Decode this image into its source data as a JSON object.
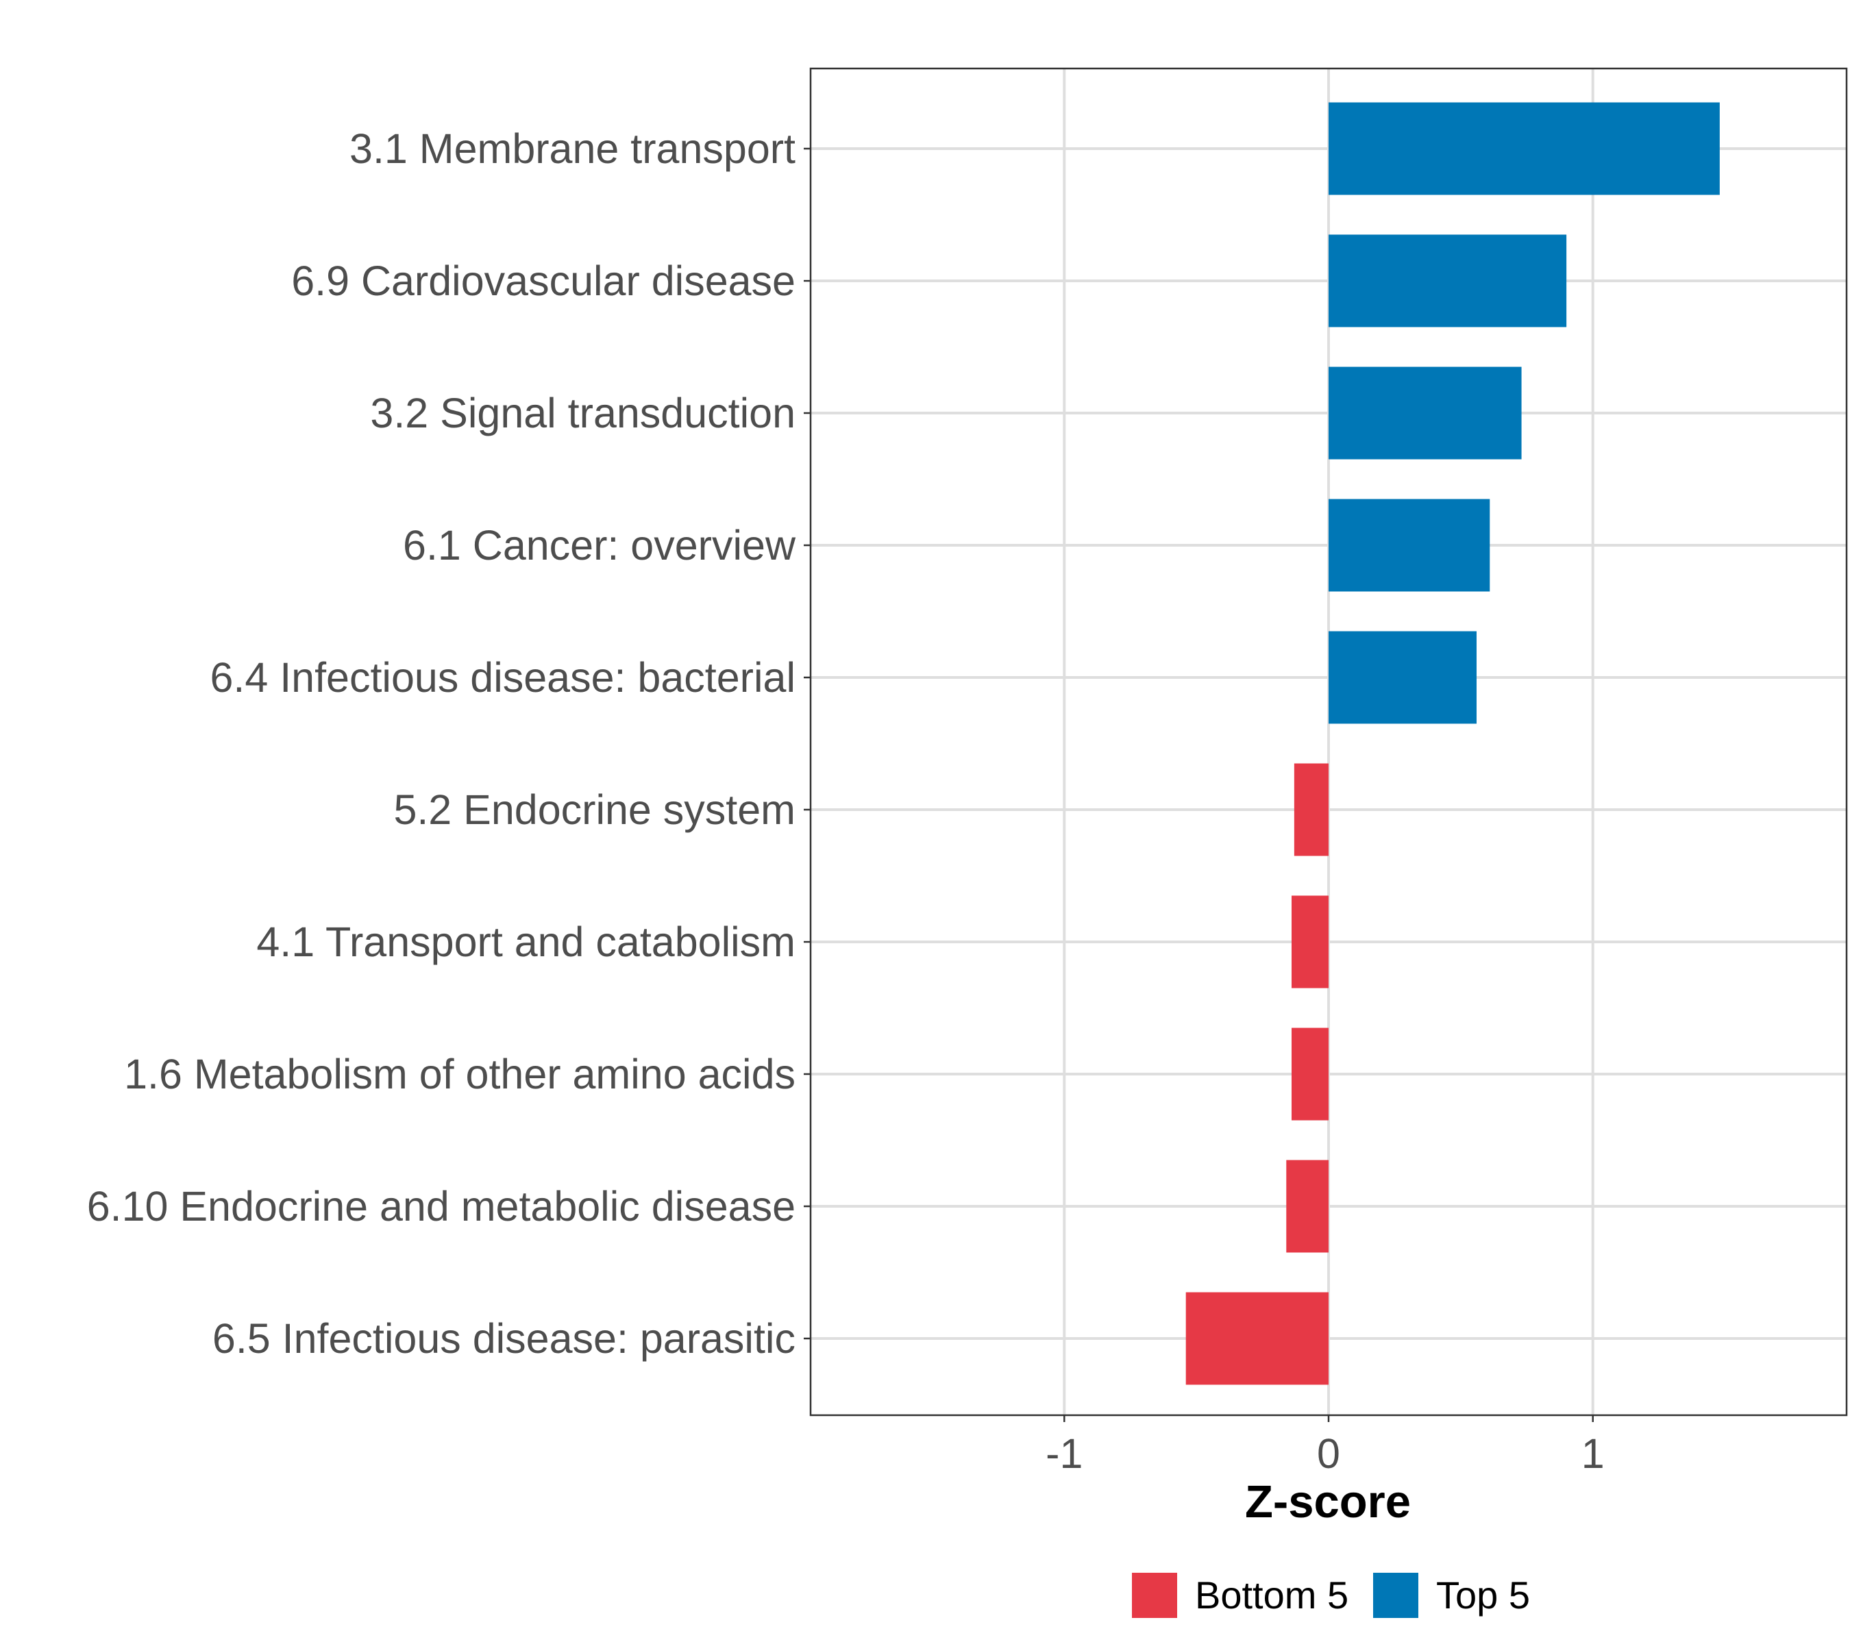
{
  "chart_data": {
    "type": "bar",
    "orientation": "horizontal",
    "categories": [
      "3.1 Membrane transport",
      "6.9 Cardiovascular disease",
      "3.2 Signal transduction",
      "6.1 Cancer: overview",
      "6.4 Infectious disease: bacterial",
      "5.2 Endocrine system",
      "4.1 Transport and catabolism",
      "1.6 Metabolism of other amino acids",
      "6.10 Endocrine and metabolic disease",
      "6.5 Infectious disease: parasitic"
    ],
    "values": [
      1.48,
      0.9,
      0.73,
      0.61,
      0.56,
      -0.13,
      -0.14,
      -0.14,
      -0.16,
      -0.54
    ],
    "groups": [
      "Top 5",
      "Top 5",
      "Top 5",
      "Top 5",
      "Top 5",
      "Bottom 5",
      "Bottom 5",
      "Bottom 5",
      "Bottom 5",
      "Bottom 5"
    ],
    "xlabel": "Z-score",
    "ylabel": "",
    "xlim": [
      -1.96,
      1.96
    ],
    "xticks": [
      -1,
      0,
      1
    ],
    "xtick_labels": [
      "-1",
      "0",
      "1"
    ],
    "grid": true,
    "legend": {
      "position": "bottom",
      "entries": [
        {
          "label": "Bottom 5",
          "color": "#e63946"
        },
        {
          "label": "Top 5",
          "color": "#0077b6"
        }
      ]
    },
    "colors": {
      "Top 5": "#0077b6",
      "Bottom 5": "#e63946"
    }
  }
}
